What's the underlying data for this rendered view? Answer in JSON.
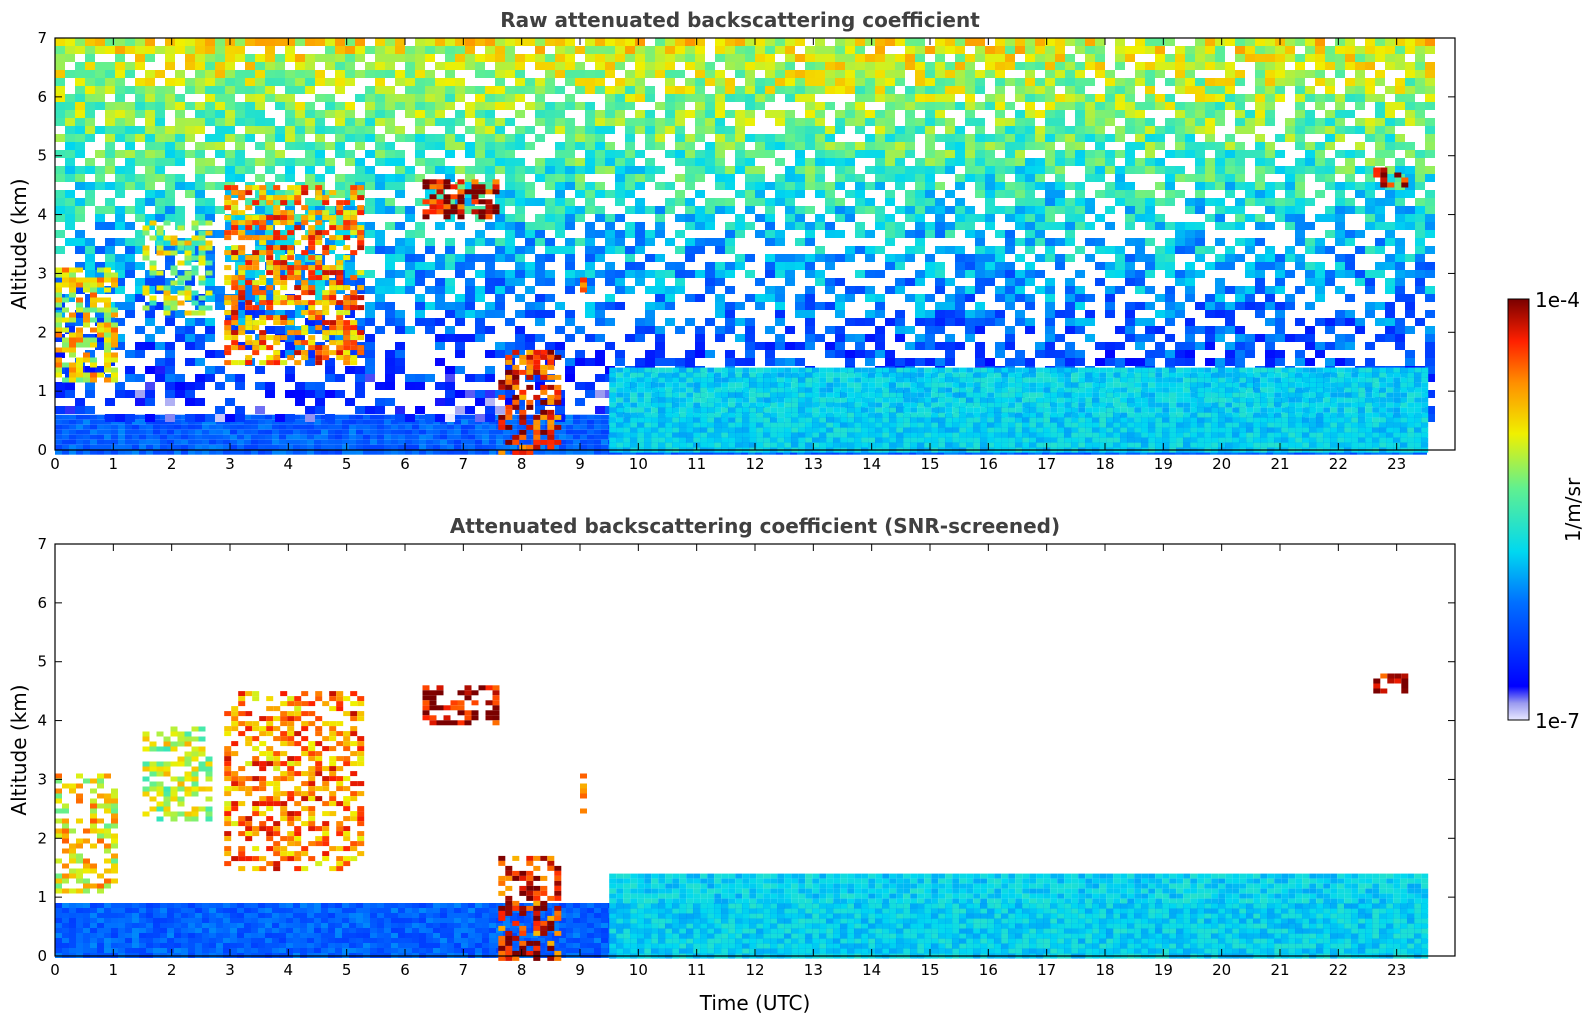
{
  "chart_data": [
    {
      "type": "heatmap",
      "title": "Raw attenuated backscattering coefficient",
      "xlabel": "",
      "ylabel": "Altitude (km)",
      "xlim": [
        0,
        24
      ],
      "ylim": [
        0,
        7
      ],
      "xticks": [
        0,
        1,
        2,
        3,
        4,
        5,
        6,
        7,
        8,
        9,
        10,
        11,
        12,
        13,
        14,
        15,
        16,
        17,
        18,
        19,
        20,
        21,
        22,
        23
      ],
      "yticks": [
        0,
        1,
        2,
        3,
        4,
        5,
        6,
        7
      ],
      "data_end_hour": 23.5,
      "features": [
        {
          "kind": "boundary_layer",
          "x": [
            0,
            23.5
          ],
          "y": [
            0,
            0.6
          ],
          "level": 0.25
        },
        {
          "kind": "noise",
          "x": [
            0,
            23.5
          ],
          "y": [
            0.6,
            7
          ],
          "level": 0.55
        },
        {
          "kind": "cloud",
          "x": [
            0,
            1
          ],
          "y": [
            1.2,
            3.1
          ],
          "level": 0.7
        },
        {
          "kind": "cloud",
          "x": [
            1.5,
            2.6
          ],
          "y": [
            2.3,
            3.9
          ],
          "level": 0.62
        },
        {
          "kind": "cloud",
          "x": [
            2.9,
            5.2
          ],
          "y": [
            1.5,
            4.5
          ],
          "level": 0.8
        },
        {
          "kind": "cloud",
          "x": [
            6.3,
            7.6
          ],
          "y": [
            4.0,
            4.6
          ],
          "level": 0.95
        },
        {
          "kind": "cloud",
          "x": [
            9.0,
            9.1
          ],
          "y": [
            2.5,
            3.1
          ],
          "level": 0.85
        },
        {
          "kind": "precipitation",
          "x": [
            7.6,
            8.6
          ],
          "y": [
            0,
            1.7
          ],
          "level": 0.9
        },
        {
          "kind": "aerosol_layer",
          "x": [
            9.5,
            23.5
          ],
          "y": [
            0,
            1.4
          ],
          "level": 0.4
        },
        {
          "kind": "cloud",
          "x": [
            22.6,
            23.1
          ],
          "y": [
            4.5,
            4.8
          ],
          "level": 0.95
        }
      ]
    },
    {
      "type": "heatmap",
      "title": "Attenuated backscattering coefficient (SNR-screened)",
      "xlabel": "Time (UTC)",
      "ylabel": "Altitude (km)",
      "xlim": [
        0,
        24
      ],
      "ylim": [
        0,
        7
      ],
      "xticks": [
        0,
        1,
        2,
        3,
        4,
        5,
        6,
        7,
        8,
        9,
        10,
        11,
        12,
        13,
        14,
        15,
        16,
        17,
        18,
        19,
        20,
        21,
        22,
        23
      ],
      "yticks": [
        0,
        1,
        2,
        3,
        4,
        5,
        6,
        7
      ],
      "data_end_hour": 23.5,
      "features": [
        {
          "kind": "boundary_layer",
          "x": [
            0,
            23.5
          ],
          "y": [
            0,
            0.9
          ],
          "level": 0.25
        },
        {
          "kind": "cloud",
          "x": [
            0,
            1
          ],
          "y": [
            1.1,
            3.1
          ],
          "level": 0.7
        },
        {
          "kind": "cloud",
          "x": [
            1.5,
            2.6
          ],
          "y": [
            2.3,
            3.9
          ],
          "level": 0.62
        },
        {
          "kind": "cloud",
          "x": [
            2.9,
            5.2
          ],
          "y": [
            1.5,
            4.5
          ],
          "level": 0.8
        },
        {
          "kind": "cloud",
          "x": [
            6.3,
            7.6
          ],
          "y": [
            4.0,
            4.6
          ],
          "level": 0.98
        },
        {
          "kind": "cloud",
          "x": [
            9.0,
            9.1
          ],
          "y": [
            2.5,
            3.1
          ],
          "level": 0.85
        },
        {
          "kind": "precipitation",
          "x": [
            7.6,
            8.6
          ],
          "y": [
            0,
            1.7
          ],
          "level": 0.9
        },
        {
          "kind": "aerosol_layer",
          "x": [
            9.5,
            23.5
          ],
          "y": [
            0,
            1.4
          ],
          "level": 0.4
        },
        {
          "kind": "cloud",
          "x": [
            22.6,
            23.1
          ],
          "y": [
            4.5,
            4.8
          ],
          "level": 0.98
        }
      ]
    }
  ],
  "colorbar": {
    "max_label": "1e-4",
    "min_label": "1e-7",
    "unit_label": "1/m/sr",
    "colormap": "jet"
  },
  "colors": {
    "title": "#404040",
    "axes": "#000000",
    "background": "#ffffff"
  }
}
